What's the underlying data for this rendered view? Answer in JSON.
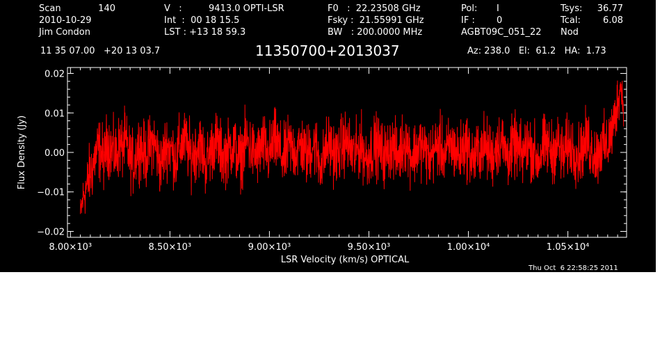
{
  "header": {
    "scan_label": "Scan",
    "scan_number": "140",
    "date": "2010-10-29",
    "observer": "Jim Condon",
    "velocity_label": "V   :",
    "velocity_value": "9413.0 OPTI-LSR",
    "int_line": "Int  :  00 18 15.5",
    "lst_line": "LST : +13 18 59.3",
    "f0_line": "F0   :  22.23508 GHz",
    "fsky_line": "Fsky :  21.55991 GHz",
    "bw_line": "BW   : 200.0000 MHz",
    "pol_label": "Pol:",
    "pol_value": "I",
    "if_label": "IF :",
    "if_value": "0",
    "project": "AGBT09C_051_22",
    "tsys_label": "Tsys:",
    "tsys_value": "36.77",
    "tcal_label": "Tcal:",
    "tcal_value": "6.08",
    "mode": "Nod",
    "coords": "11 35 07.00   +20 13 03.7",
    "source": "11350700+2013037",
    "azelha": "Az: 238.0   El:  61.2   HA:  1.73"
  },
  "timestamp": "Thu Oct  6 22:58:25 2011",
  "colors": {
    "background": "#000000",
    "axes": "#ffffff",
    "trace": "#ff0000"
  },
  "chart_data": {
    "type": "line",
    "title": "11350700+2013037",
    "xlabel": "LSR Velocity (km/s) OPTICAL",
    "ylabel": "Flux Density (Jy)",
    "xlim": [
      7985,
      10795
    ],
    "ylim": [
      -0.0215,
      0.0215
    ],
    "x_ticks": [
      {
        "value": 8000,
        "label": "8.00×10³"
      },
      {
        "value": 8500,
        "label": "8.50×10³"
      },
      {
        "value": 9000,
        "label": "9.00×10³"
      },
      {
        "value": 9500,
        "label": "9.50×10³"
      },
      {
        "value": 10000,
        "label": "1.00×10⁴"
      },
      {
        "value": 10500,
        "label": "1.05×10⁴"
      }
    ],
    "y_ticks": [
      {
        "value": -0.02,
        "label": "−0.02"
      },
      {
        "value": -0.01,
        "label": "−0.01"
      },
      {
        "value": 0.0,
        "label": "0.00"
      },
      {
        "value": 0.01,
        "label": "0.01"
      },
      {
        "value": 0.02,
        "label": "0.02"
      }
    ],
    "grid": false,
    "series": [
      {
        "color": "#ff0000",
        "x_start": 8050,
        "x_step": 15,
        "values": [
          -0.016,
          -0.011,
          -0.009,
          -0.006,
          -0.004,
          -0.001,
          0.001,
          0.0,
          -0.002,
          0.003,
          0.001,
          0.0,
          -0.001,
          0.002,
          0.001,
          0.003,
          0.0,
          -0.002,
          -0.003,
          0.001,
          0.002,
          0.0,
          -0.001,
          0.001,
          0.003,
          0.002,
          -0.001,
          -0.004,
          0.0,
          0.002,
          0.001,
          0.0,
          -0.002,
          0.001,
          0.002,
          0.003,
          0.001,
          -0.001,
          0.0,
          0.001,
          0.002,
          0.0,
          -0.003,
          -0.001,
          0.001,
          0.003,
          0.002,
          0.0,
          -0.001,
          0.0,
          0.001,
          0.002,
          0.001,
          -0.002,
          -0.001,
          0.002,
          0.003,
          0.001,
          0.0,
          -0.001,
          0.0,
          0.002,
          0.001,
          -0.001,
          0.001,
          0.003,
          0.002,
          0.0,
          -0.002,
          0.0,
          0.002,
          0.001,
          0.0,
          0.001,
          0.002,
          0.0,
          -0.001,
          0.001,
          0.002,
          0.001,
          -0.002,
          -0.003,
          0.0,
          0.002,
          0.001,
          0.0,
          -0.001,
          0.001,
          0.002,
          0.003,
          0.001,
          0.0,
          -0.001,
          0.001,
          0.002,
          0.0,
          -0.002,
          0.0,
          0.001,
          0.002,
          0.001,
          0.0,
          -0.001,
          0.0,
          0.002,
          0.001,
          -0.001,
          0.0,
          0.002,
          0.003,
          0.001,
          -0.001,
          0.0,
          0.001,
          0.002,
          0.001,
          0.0,
          -0.002,
          0.0,
          0.001,
          0.002,
          0.001,
          -0.001,
          0.0,
          0.002,
          0.001,
          0.0,
          -0.001,
          0.001,
          0.002,
          0.001,
          -0.001,
          -0.002,
          0.0,
          0.001,
          0.002,
          0.001,
          0.0,
          -0.001,
          0.001,
          0.002,
          0.003,
          0.001,
          -0.001,
          0.0,
          0.001,
          0.002,
          0.0,
          -0.001,
          0.001,
          0.002,
          0.001,
          0.0,
          -0.002,
          -0.001,
          0.001,
          0.002,
          0.001,
          0.0,
          0.001,
          0.002,
          0.0,
          -0.001,
          0.001,
          0.002,
          0.001,
          0.0,
          -0.001,
          0.001,
          0.002,
          0.003,
          0.001,
          0.0,
          -0.001,
          0.001,
          0.002,
          0.001,
          0.003,
          0.005,
          0.008,
          0.013,
          0.017,
          0.012
        ],
        "envelope_amplitude": [
          0.004,
          0.005,
          0.006,
          0.007,
          0.007,
          0.007,
          0.007,
          0.007,
          0.007,
          0.007,
          0.007,
          0.007,
          0.007,
          0.007,
          0.007,
          0.007,
          0.007,
          0.007,
          0.007,
          0.007,
          0.007,
          0.007,
          0.007,
          0.007,
          0.007,
          0.007,
          0.007,
          0.007,
          0.007,
          0.007,
          0.007,
          0.007,
          0.007,
          0.007,
          0.007,
          0.007,
          0.007,
          0.007,
          0.007,
          0.007,
          0.007,
          0.007,
          0.007,
          0.007,
          0.007,
          0.007,
          0.007,
          0.007,
          0.007,
          0.007,
          0.007,
          0.007,
          0.007,
          0.007,
          0.007,
          0.007,
          0.007,
          0.007,
          0.007,
          0.007,
          0.007,
          0.007,
          0.007,
          0.007,
          0.007,
          0.007,
          0.007,
          0.007,
          0.007,
          0.007,
          0.007,
          0.007,
          0.007,
          0.007,
          0.007,
          0.007,
          0.007,
          0.007,
          0.007,
          0.007,
          0.007,
          0.007,
          0.007,
          0.007,
          0.007,
          0.007,
          0.007,
          0.007,
          0.007,
          0.007,
          0.007,
          0.007,
          0.007,
          0.007,
          0.007,
          0.007,
          0.007,
          0.007,
          0.007,
          0.007,
          0.007,
          0.007,
          0.007,
          0.007,
          0.007,
          0.007,
          0.007,
          0.007,
          0.007,
          0.007,
          0.007,
          0.007,
          0.007,
          0.007,
          0.007,
          0.007,
          0.007,
          0.007,
          0.007,
          0.007,
          0.007,
          0.007,
          0.007,
          0.007,
          0.007,
          0.007,
          0.007,
          0.007,
          0.007,
          0.007,
          0.007,
          0.007,
          0.007,
          0.007,
          0.007,
          0.007,
          0.007,
          0.007,
          0.007,
          0.007,
          0.007,
          0.007,
          0.007,
          0.007,
          0.007,
          0.007,
          0.007,
          0.007,
          0.007,
          0.007,
          0.007,
          0.007,
          0.007,
          0.007,
          0.007,
          0.007,
          0.007,
          0.007,
          0.007,
          0.007,
          0.007,
          0.007,
          0.007,
          0.007,
          0.007,
          0.007,
          0.007,
          0.007,
          0.007,
          0.007,
          0.007,
          0.007,
          0.007,
          0.007,
          0.007,
          0.007,
          0.007,
          0.007,
          0.007,
          0.007,
          0.006,
          0.005,
          0.004,
          0.003,
          0.003
        ]
      }
    ]
  }
}
